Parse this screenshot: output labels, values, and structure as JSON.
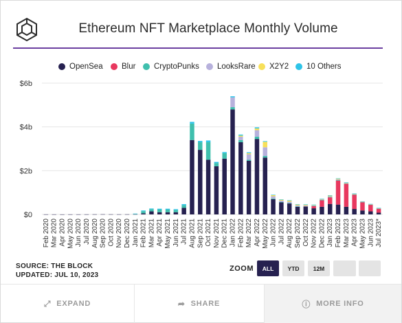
{
  "header": {
    "title": "Ethereum NFT Marketplace Monthly Volume",
    "logo_icon": "the-block-cube-icon"
  },
  "legend": [
    {
      "label": "OpenSea",
      "color": "#262150"
    },
    {
      "label": "Blur",
      "color": "#e8385f"
    },
    {
      "label": "CryptoPunks",
      "color": "#3fbfad"
    },
    {
      "label": "LooksRare",
      "color": "#b7b1dc"
    },
    {
      "label": "X2Y2",
      "color": "#f7e05a"
    },
    {
      "label": "10 Others",
      "color": "#2ec4e8"
    }
  ],
  "source": {
    "line1": "SOURCE: THE BLOCK",
    "line2": "UPDATED: JUL 10, 2023"
  },
  "zoom": {
    "label": "ZOOM",
    "buttons": [
      {
        "label": "ALL",
        "active": true
      },
      {
        "label": "YTD",
        "active": false
      },
      {
        "label": "12M",
        "active": false
      },
      {
        "label": "",
        "active": false
      },
      {
        "label": "",
        "active": false
      }
    ]
  },
  "footer": {
    "expand": {
      "label": "EXPAND",
      "icon": "expand-arrows-icon"
    },
    "share": {
      "label": "SHARE",
      "icon": "share-arrow-icon"
    },
    "more": {
      "label": "MORE INFO",
      "icon": "info-circle-icon"
    }
  },
  "chart_data": {
    "type": "bar",
    "stacked": true,
    "ylim": [
      0,
      6
    ],
    "y_ticks": [
      0,
      2,
      4,
      6
    ],
    "y_tick_labels": [
      "$0",
      "$2b",
      "$4b",
      "$6b"
    ],
    "grid": true,
    "legend_position": "top",
    "categories": [
      "Feb 2020",
      "Mar 2020",
      "Apr 2020",
      "May 2020",
      "Jun 2020",
      "Jul 2020",
      "Aug 2020",
      "Sep 2020",
      "Oct 2020",
      "Nov 2020",
      "Dec 2020",
      "Jan 2021",
      "Feb 2021",
      "Mar 2021",
      "Apr 2021",
      "May 2021",
      "Jun 2021",
      "Jul 2021",
      "Aug 2021",
      "Sep 2021",
      "Oct 2021",
      "Nov 2021",
      "Dec 2021",
      "Jan 2022",
      "Feb 2022",
      "Mar 2022",
      "Apr 2022",
      "May 2022",
      "Jun 2022",
      "Jul 2022",
      "Aug 2022",
      "Sep 2022",
      "Oct 2022",
      "Nov 2022",
      "Dec 2022",
      "Jan 2023",
      "Feb 2023",
      "Mar 2023",
      "Apr 2023",
      "May 2023",
      "Jun 2023",
      "Jul 2023*"
    ],
    "series": [
      {
        "name": "OpenSea",
        "color": "#262150",
        "values": [
          0.003,
          0.003,
          0.002,
          0.003,
          0.003,
          0.004,
          0.006,
          0.008,
          0.006,
          0.005,
          0.006,
          0.008,
          0.05,
          0.14,
          0.1,
          0.1,
          0.1,
          0.3,
          3.4,
          2.95,
          2.5,
          2.2,
          2.55,
          4.8,
          3.3,
          2.45,
          3.45,
          2.6,
          0.7,
          0.55,
          0.5,
          0.35,
          0.35,
          0.28,
          0.35,
          0.48,
          0.45,
          0.35,
          0.25,
          0.18,
          0.14,
          0.08
        ]
      },
      {
        "name": "Blur",
        "color": "#e8385f",
        "values": [
          0,
          0,
          0,
          0,
          0,
          0,
          0,
          0,
          0,
          0,
          0,
          0,
          0,
          0,
          0,
          0,
          0,
          0,
          0,
          0,
          0,
          0,
          0,
          0,
          0,
          0,
          0,
          0,
          0,
          0,
          0,
          0,
          0.01,
          0.1,
          0.3,
          0.3,
          1.1,
          1.05,
          0.65,
          0.38,
          0.3,
          0.18
        ]
      },
      {
        "name": "CryptoPunks",
        "color": "#3fbfad",
        "values": [
          0,
          0,
          0,
          0,
          0,
          0,
          0,
          0,
          0,
          0,
          0,
          0.02,
          0.1,
          0.1,
          0.12,
          0.12,
          0.1,
          0.12,
          0.75,
          0.35,
          0.8,
          0.15,
          0.25,
          0.1,
          0.1,
          0.05,
          0.1,
          0.07,
          0.03,
          0.02,
          0.02,
          0.02,
          0.02,
          0.01,
          0.01,
          0.02,
          0.02,
          0.01,
          0.01,
          0.01,
          0.01,
          0.01
        ]
      },
      {
        "name": "LooksRare",
        "color": "#b7b1dc",
        "values": [
          0,
          0,
          0,
          0,
          0,
          0,
          0,
          0,
          0,
          0,
          0,
          0,
          0,
          0,
          0,
          0,
          0,
          0,
          0,
          0,
          0,
          0,
          0,
          0.45,
          0.15,
          0.25,
          0.3,
          0.4,
          0.1,
          0.06,
          0.06,
          0.04,
          0.03,
          0.02,
          0.02,
          0.03,
          0.03,
          0.02,
          0.02,
          0.01,
          0.01,
          0.01
        ]
      },
      {
        "name": "X2Y2",
        "color": "#f7e05a",
        "values": [
          0,
          0,
          0,
          0,
          0,
          0,
          0,
          0,
          0,
          0,
          0,
          0,
          0,
          0,
          0,
          0,
          0,
          0,
          0,
          0,
          0,
          0,
          0,
          0,
          0.05,
          0.05,
          0.08,
          0.25,
          0.05,
          0.04,
          0.05,
          0.04,
          0.03,
          0.02,
          0.02,
          0.03,
          0.03,
          0.02,
          0.01,
          0.01,
          0.01,
          0.01
        ]
      },
      {
        "name": "10 Others",
        "color": "#2ec4e8",
        "values": [
          0,
          0,
          0,
          0,
          0,
          0,
          0,
          0,
          0,
          0,
          0,
          0.01,
          0.03,
          0.03,
          0.04,
          0.04,
          0.04,
          0.05,
          0.08,
          0.06,
          0.08,
          0.05,
          0.05,
          0.05,
          0.05,
          0.04,
          0.05,
          0.03,
          0.02,
          0.02,
          0.02,
          0.02,
          0.02,
          0.02,
          0.02,
          0.02,
          0.02,
          0.02,
          0.02,
          0.01,
          0.01,
          0.01
        ]
      }
    ]
  }
}
